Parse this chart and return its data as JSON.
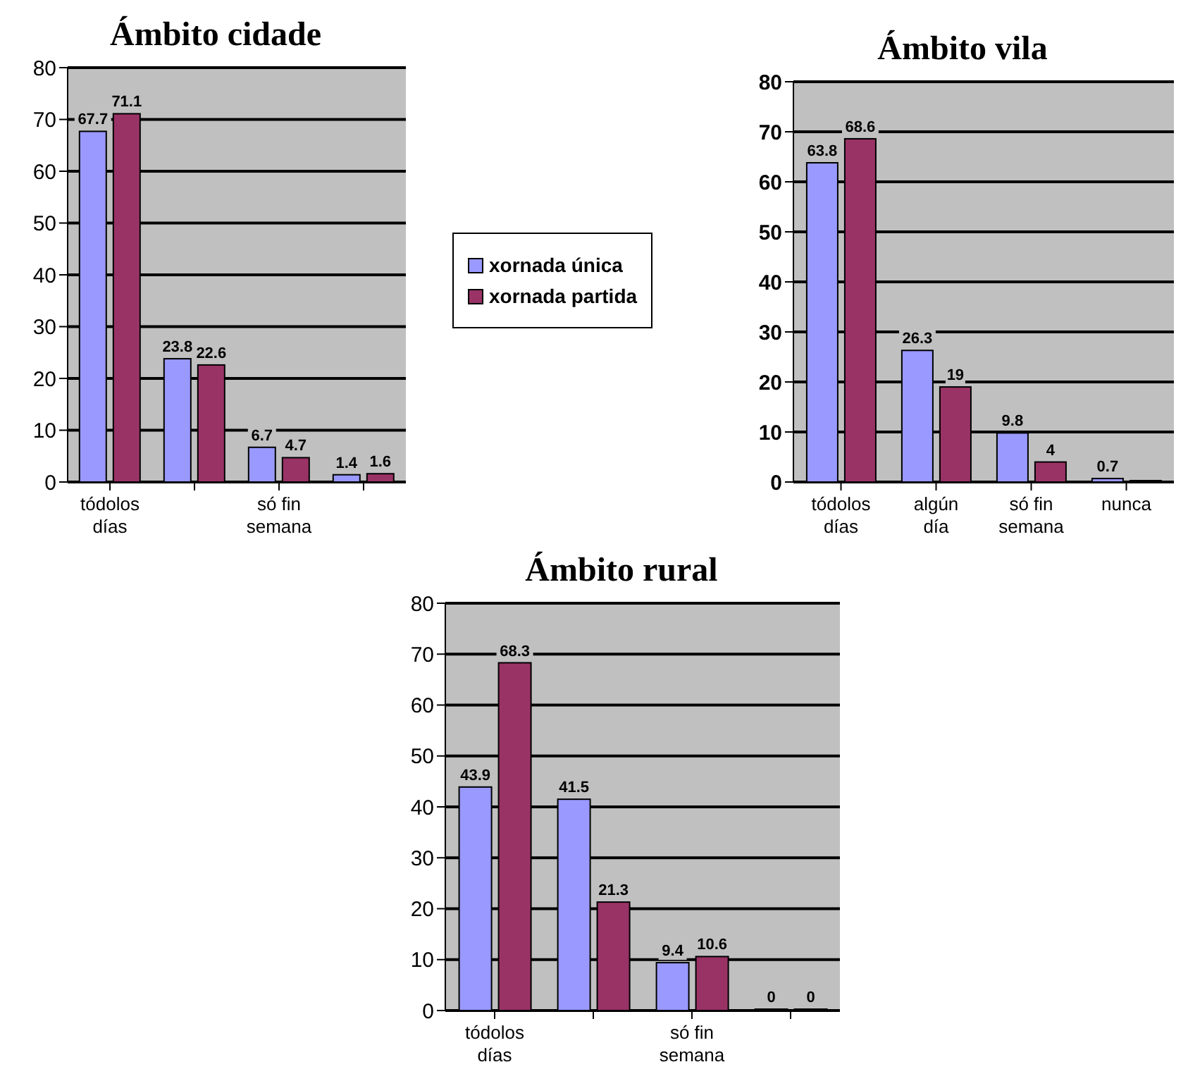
{
  "chart_data": [
    {
      "type": "bar",
      "title": "Ámbito cidade",
      "categories": [
        "tódolos días",
        null,
        "só fin semana",
        null
      ],
      "series": [
        {
          "name": "xornada única",
          "color": "#9999ff",
          "values": [
            67.7,
            23.8,
            6.7,
            1.4
          ],
          "value_labels": [
            "67.7",
            "23.8",
            "6.7",
            "1.4"
          ]
        },
        {
          "name": "xornada partida",
          "color": "#993366",
          "values": [
            71.1,
            22.6,
            4.7,
            1.6
          ],
          "value_labels": [
            "71.1",
            "22.6",
            "4.7",
            "1.6"
          ]
        }
      ],
      "ylim": [
        0,
        80
      ],
      "yticks": [
        0,
        10,
        20,
        30,
        40,
        50,
        60,
        70,
        80
      ],
      "grid": "y",
      "legend": "right"
    },
    {
      "type": "bar",
      "title": "Ámbito vila",
      "categories": [
        "tódolos días",
        "algún día",
        "só fin semana",
        "nunca"
      ],
      "series": [
        {
          "color": "#9999ff",
          "values": [
            63.8,
            26.3,
            9.8,
            0.7
          ],
          "value_labels": [
            "63.8",
            "26.3",
            "9.8",
            "0.7"
          ]
        },
        {
          "color": "#993366",
          "values": [
            68.6,
            19,
            4,
            0
          ],
          "value_labels": [
            "68.6",
            "19",
            "4",
            null
          ]
        }
      ],
      "ylim": [
        0,
        80
      ],
      "yticks": [
        0,
        10,
        20,
        30,
        40,
        50,
        60,
        70,
        80
      ],
      "grid": "y"
    },
    {
      "type": "bar",
      "title": "Ámbito rural",
      "categories": [
        "tódolos días",
        null,
        "só fin semana",
        null
      ],
      "series": [
        {
          "color": "#9999ff",
          "values": [
            43.9,
            41.5,
            9.4,
            0
          ],
          "value_labels": [
            "43.9",
            "41.5",
            "9.4",
            "0"
          ]
        },
        {
          "color": "#993366",
          "values": [
            68.3,
            21.3,
            10.6,
            0
          ],
          "value_labels": [
            "68.3",
            "21.3",
            "10.6",
            "0"
          ]
        }
      ],
      "ylim": [
        0,
        80
      ],
      "yticks": [
        0,
        10,
        20,
        30,
        40,
        50,
        60,
        70,
        80
      ],
      "grid": "y"
    }
  ]
}
